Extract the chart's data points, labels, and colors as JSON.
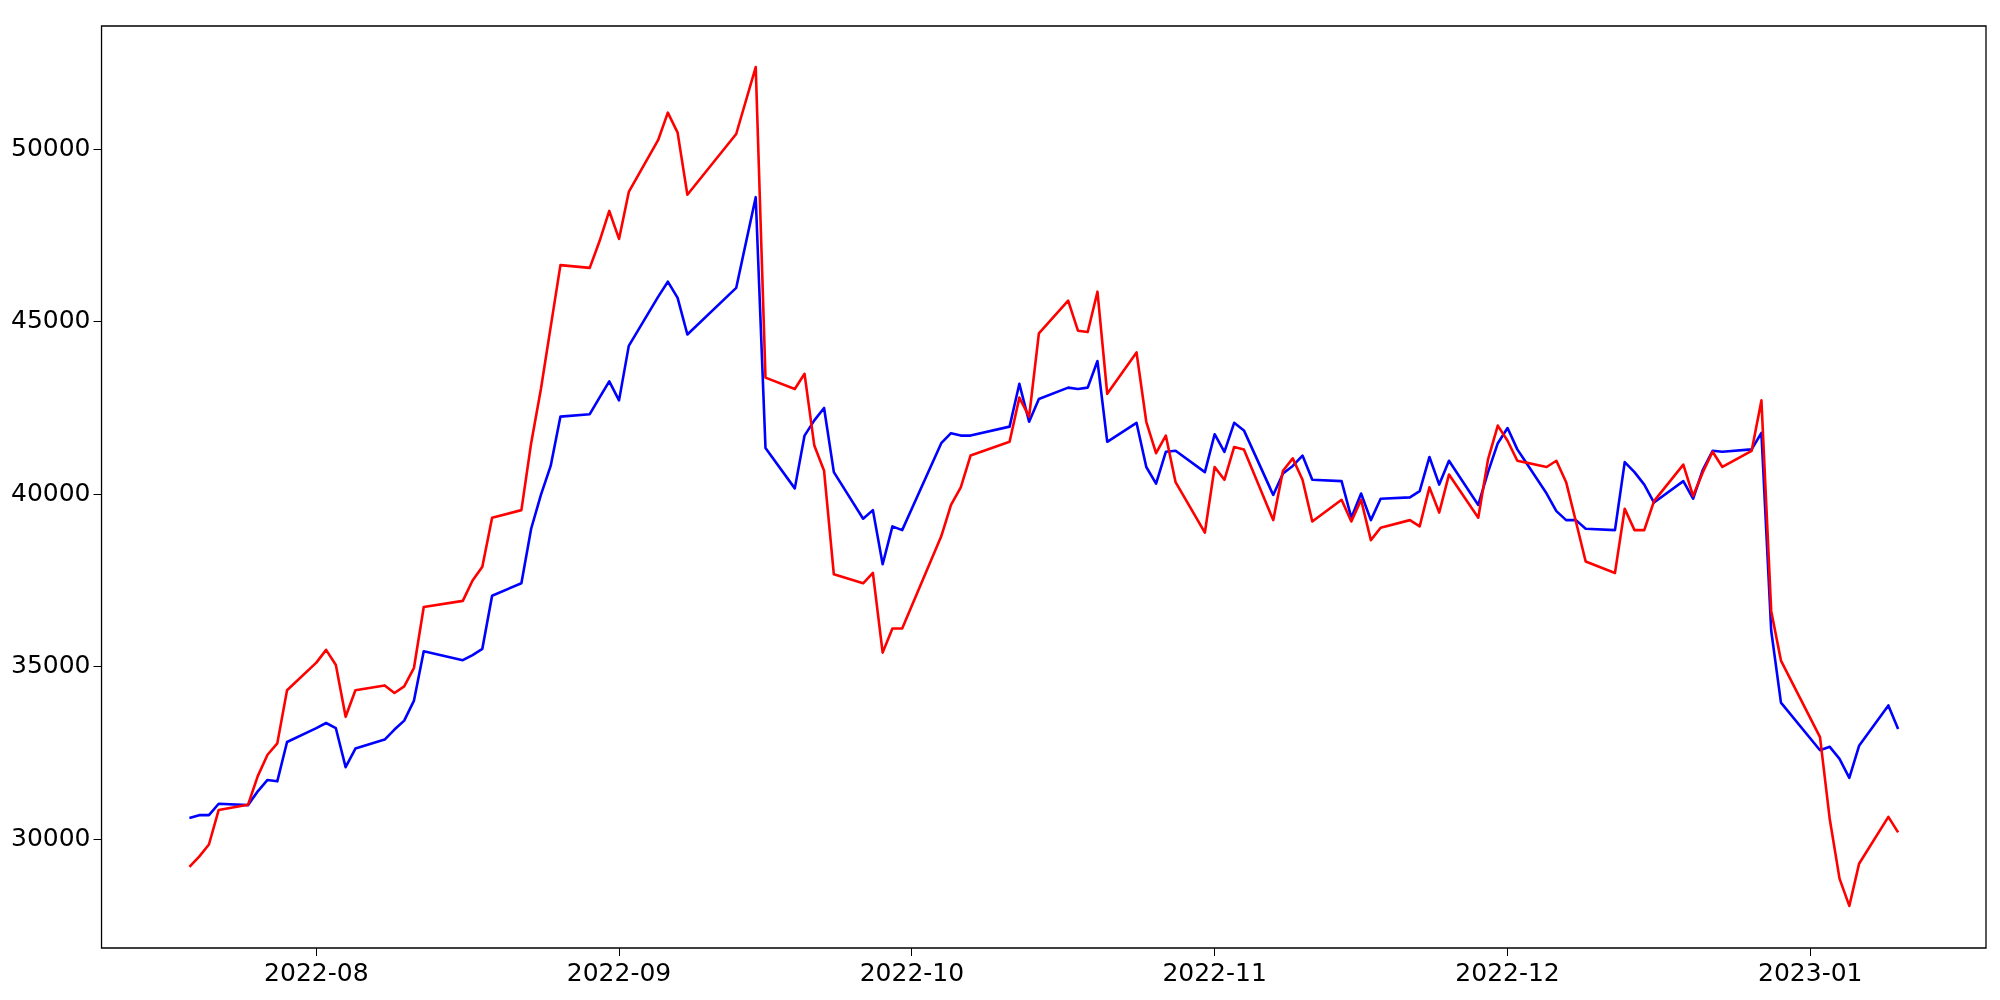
{
  "chart_data": {
    "type": "line",
    "x": [
      "2022-07-19",
      "2022-07-20",
      "2022-07-21",
      "2022-07-22",
      "2022-07-25",
      "2022-07-26",
      "2022-07-27",
      "2022-07-28",
      "2022-07-29",
      "2022-08-01",
      "2022-08-02",
      "2022-08-03",
      "2022-08-04",
      "2022-08-05",
      "2022-08-08",
      "2022-08-09",
      "2022-08-10",
      "2022-08-11",
      "2022-08-12",
      "2022-08-16",
      "2022-08-17",
      "2022-08-18",
      "2022-08-19",
      "2022-08-22",
      "2022-08-23",
      "2022-08-24",
      "2022-08-25",
      "2022-08-26",
      "2022-08-29",
      "2022-08-30",
      "2022-08-31",
      "2022-09-01",
      "2022-09-02",
      "2022-09-05",
      "2022-09-06",
      "2022-09-07",
      "2022-09-08",
      "2022-09-13",
      "2022-09-15",
      "2022-09-16",
      "2022-09-19",
      "2022-09-20",
      "2022-09-21",
      "2022-09-22",
      "2022-09-23",
      "2022-09-26",
      "2022-09-27",
      "2022-09-28",
      "2022-09-29",
      "2022-09-30",
      "2022-10-04",
      "2022-10-05",
      "2022-10-06",
      "2022-10-07",
      "2022-10-11",
      "2022-10-12",
      "2022-10-13",
      "2022-10-14",
      "2022-10-17",
      "2022-10-18",
      "2022-10-19",
      "2022-10-20",
      "2022-10-21",
      "2022-10-24",
      "2022-10-25",
      "2022-10-26",
      "2022-10-27",
      "2022-10-28",
      "2022-10-31",
      "2022-11-01",
      "2022-11-02",
      "2022-11-03",
      "2022-11-04",
      "2022-11-07",
      "2022-11-08",
      "2022-11-09",
      "2022-11-10",
      "2022-11-11",
      "2022-11-14",
      "2022-11-15",
      "2022-11-16",
      "2022-11-17",
      "2022-11-18",
      "2022-11-21",
      "2022-11-22",
      "2022-11-23",
      "2022-11-24",
      "2022-11-25",
      "2022-11-28",
      "2022-11-29",
      "2022-11-30",
      "2022-12-01",
      "2022-12-02",
      "2022-12-05",
      "2022-12-06",
      "2022-12-07",
      "2022-12-08",
      "2022-12-09",
      "2022-12-12",
      "2022-12-13",
      "2022-12-14",
      "2022-12-15",
      "2022-12-16",
      "2022-12-19",
      "2022-12-20",
      "2022-12-21",
      "2022-12-22",
      "2022-12-23",
      "2022-12-26",
      "2022-12-27",
      "2022-12-28",
      "2022-12-29",
      "2023-01-02",
      "2023-01-03",
      "2023-01-04",
      "2023-01-05",
      "2023-01-06",
      "2023-01-09",
      "2023-01-10"
    ],
    "series": [
      {
        "color": "#ff0000",
        "values": [
          29200,
          29500,
          29850,
          30850,
          31000,
          31830,
          32450,
          32780,
          34320,
          35120,
          35490,
          35050,
          33550,
          34320,
          34460,
          34240,
          34430,
          34970,
          36730,
          36910,
          37500,
          37900,
          39320,
          39540,
          41480,
          43050,
          44850,
          46640,
          46560,
          47330,
          48210,
          47400,
          48760,
          50260,
          51060,
          50480,
          48680,
          50440,
          52380,
          43380,
          43050,
          43490,
          41410,
          40680,
          37680,
          37420,
          37720,
          35410,
          36110,
          36110,
          38780,
          39690,
          40200,
          41120,
          41520,
          42800,
          42250,
          44660,
          45610,
          44740,
          44700,
          45870,
          42910,
          44110,
          42100,
          41190,
          41700,
          40350,
          38890,
          40790,
          40420,
          41370,
          41300,
          39250,
          40680,
          41040,
          40420,
          39210,
          39840,
          39210,
          39840,
          38670,
          39030,
          39250,
          39070,
          40200,
          39470,
          40570,
          39320,
          41010,
          41990,
          41550,
          40970,
          40790,
          40970,
          40350,
          39210,
          38050,
          37720,
          39580,
          38960,
          38960,
          39800,
          40860,
          39950,
          40640,
          41230,
          40790,
          41260,
          42720,
          36620,
          35180,
          32960,
          30580,
          28860,
          28070,
          29290,
          30650,
          30200
        ]
      },
      {
        "color": "#0000ff",
        "values": [
          30620,
          30700,
          30700,
          31030,
          30990,
          31390,
          31720,
          31680,
          32820,
          33220,
          33370,
          33220,
          32090,
          32630,
          32890,
          33180,
          33440,
          34020,
          35450,
          35190,
          35340,
          35520,
          37060,
          37420,
          39000,
          39980,
          40820,
          42250,
          42320,
          42800,
          43270,
          42720,
          44300,
          45720,
          46160,
          45690,
          44630,
          45980,
          48610,
          41340,
          40170,
          41700,
          42140,
          42500,
          40640,
          39290,
          39540,
          37970,
          39070,
          38960,
          41480,
          41770,
          41700,
          41700,
          41960,
          43200,
          42100,
          42760,
          43090,
          43050,
          43090,
          43860,
          41520,
          42070,
          40790,
          40310,
          41230,
          41260,
          40640,
          41740,
          41230,
          42070,
          41850,
          39980,
          40600,
          40820,
          41120,
          40420,
          40380,
          39320,
          40020,
          39250,
          39870,
          39910,
          40090,
          41080,
          40280,
          40970,
          39690,
          40640,
          41480,
          41920,
          41300,
          40020,
          39510,
          39250,
          39250,
          39000,
          38960,
          40930,
          40640,
          40280,
          39760,
          40380,
          39870,
          40710,
          41260,
          41230,
          41300,
          41780,
          36050,
          33960,
          32580,
          32680,
          32330,
          31780,
          32710,
          33880,
          33200
        ]
      }
    ],
    "xlim": [
      "2022-07-10",
      "2023-01-19"
    ],
    "xticks": [
      {
        "value": "2022-08-01",
        "label": "2022-08"
      },
      {
        "value": "2022-09-01",
        "label": "2022-09"
      },
      {
        "value": "2022-10-01",
        "label": "2022-10"
      },
      {
        "value": "2022-11-01",
        "label": "2022-11"
      },
      {
        "value": "2022-12-01",
        "label": "2022-12"
      },
      {
        "value": "2023-01-01",
        "label": "2023-01"
      }
    ],
    "ylim": [
      26850,
      53570
    ],
    "yticks": [
      30000,
      35000,
      40000,
      45000,
      50000
    ],
    "grid": false,
    "legend": false,
    "marker": "none",
    "line_style": "solid"
  }
}
